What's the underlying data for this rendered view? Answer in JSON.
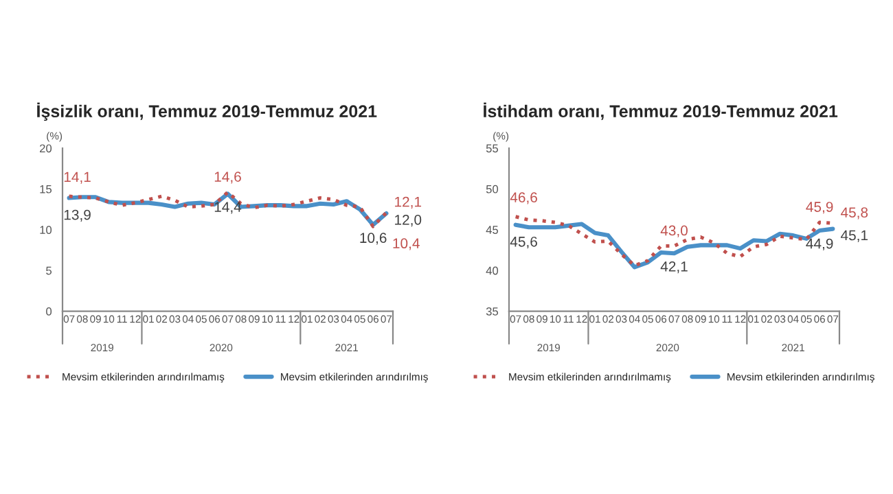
{
  "chart_data": [
    {
      "type": "line",
      "title": "İşsizlik oranı, Temmuz 2019-Temmuz 2021",
      "ylabel": "(%)",
      "categories": [
        "07",
        "08",
        "09",
        "10",
        "11",
        "12",
        "01",
        "02",
        "03",
        "04",
        "05",
        "06",
        "07",
        "08",
        "09",
        "10",
        "11",
        "12",
        "01",
        "02",
        "03",
        "04",
        "05",
        "06",
        "07"
      ],
      "annotations": [
        "2019",
        "2020",
        "2021"
      ],
      "series": [
        {
          "name": "Mevsim etkilerinden arındırılmamış",
          "color": "#c0504d",
          "line_style": "dotted",
          "values": [
            14.1,
            14.0,
            13.9,
            13.4,
            13.0,
            13.3,
            13.7,
            14.1,
            13.6,
            12.8,
            12.9,
            13.1,
            14.6,
            13.2,
            12.7,
            13.0,
            12.9,
            13.1,
            13.5,
            13.9,
            13.7,
            13.0,
            12.8,
            10.4,
            12.1
          ],
          "value_labels": [
            "14,1",
            null,
            null,
            null,
            null,
            null,
            null,
            null,
            null,
            null,
            null,
            null,
            "14,6",
            null,
            null,
            null,
            null,
            null,
            null,
            null,
            null,
            null,
            null,
            "10,4",
            "12,1"
          ]
        },
        {
          "name": "Mevsim etkilerinden arındırılmış",
          "color": "#4a90c8",
          "line_style": "solid",
          "values": [
            13.9,
            14.0,
            14.0,
            13.4,
            13.3,
            13.3,
            13.3,
            13.1,
            12.8,
            13.2,
            13.3,
            13.1,
            14.4,
            12.8,
            12.9,
            13.0,
            13.0,
            12.9,
            12.9,
            13.2,
            13.1,
            13.5,
            12.5,
            10.6,
            12.0
          ],
          "value_labels": [
            "13,9",
            null,
            null,
            null,
            null,
            null,
            null,
            null,
            null,
            null,
            null,
            null,
            "14,4",
            null,
            null,
            null,
            null,
            null,
            null,
            null,
            null,
            null,
            null,
            "10,6",
            "12,0"
          ]
        }
      ],
      "ylim": [
        0,
        20
      ],
      "yticks": [
        0,
        5,
        10,
        15,
        20
      ],
      "grid": false,
      "legend": "bottom"
    },
    {
      "type": "line",
      "title": "İstihdam oranı, Temmuz 2019-Temmuz 2021",
      "ylabel": "(%)",
      "categories": [
        "07",
        "08",
        "09",
        "10",
        "11",
        "12",
        "01",
        "02",
        "03",
        "04",
        "05",
        "06",
        "07",
        "08",
        "09",
        "10",
        "11",
        "12",
        "01",
        "02",
        "03",
        "04",
        "05",
        "06",
        "07"
      ],
      "annotations": [
        "2019",
        "2020",
        "2021"
      ],
      "series": [
        {
          "name": "Mevsim etkilerinden arındırılmamış",
          "color": "#c0504d",
          "line_style": "dotted",
          "values": [
            46.6,
            46.2,
            46.1,
            45.9,
            45.5,
            44.5,
            43.5,
            43.6,
            42.0,
            40.6,
            41.2,
            43.0,
            43.0,
            43.8,
            44.1,
            43.4,
            42.1,
            41.7,
            42.9,
            43.2,
            44.2,
            44.0,
            43.8,
            45.9,
            45.8
          ],
          "value_labels": [
            "46,6",
            null,
            null,
            null,
            null,
            null,
            null,
            null,
            null,
            null,
            null,
            null,
            "43,0",
            null,
            null,
            null,
            null,
            null,
            null,
            null,
            null,
            null,
            null,
            "45,9",
            "45,8"
          ]
        },
        {
          "name": "Mevsim etkilerinden arındırılmış",
          "color": "#4a90c8",
          "line_style": "solid",
          "values": [
            45.6,
            45.3,
            45.3,
            45.3,
            45.5,
            45.7,
            44.6,
            44.3,
            42.3,
            40.4,
            41.0,
            42.2,
            42.1,
            42.9,
            43.1,
            43.1,
            43.1,
            42.7,
            43.7,
            43.6,
            44.5,
            44.3,
            43.9,
            44.9,
            45.1
          ],
          "value_labels": [
            "45,6",
            null,
            null,
            null,
            null,
            null,
            null,
            null,
            null,
            null,
            null,
            null,
            "42,1",
            null,
            null,
            null,
            null,
            null,
            null,
            null,
            null,
            null,
            null,
            "44,9",
            "45,1"
          ]
        }
      ],
      "ylim": [
        35,
        55
      ],
      "yticks": [
        35,
        40,
        45,
        50,
        55
      ],
      "grid": false,
      "legend": "bottom"
    }
  ]
}
